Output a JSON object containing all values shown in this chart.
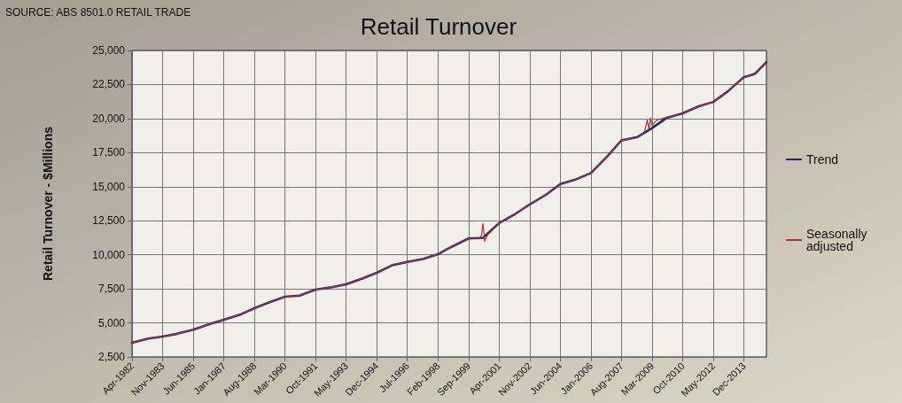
{
  "chart_data": {
    "type": "line",
    "title": "Retail Turnover",
    "ylabel": "Retail Turnover - $Millions",
    "annotations": [
      "SOURCE: ABS 8501.0 RETAIL TRADE"
    ],
    "xlim": [
      "1982-04",
      "2015-02"
    ],
    "xticks": [
      {
        "value": "1982-04",
        "label": "Apr-1982"
      },
      {
        "value": "1983-11",
        "label": "Nov-1983"
      },
      {
        "value": "1985-06",
        "label": "Jun-1985"
      },
      {
        "value": "1987-01",
        "label": "Jan-1987"
      },
      {
        "value": "1988-08",
        "label": "Aug-1988"
      },
      {
        "value": "1990-03",
        "label": "Mar-1990"
      },
      {
        "value": "1991-10",
        "label": "Oct-1991"
      },
      {
        "value": "1993-05",
        "label": "May-1993"
      },
      {
        "value": "1994-12",
        "label": "Dec-1994"
      },
      {
        "value": "1996-07",
        "label": "Jul-1996"
      },
      {
        "value": "1998-02",
        "label": "Feb-1998"
      },
      {
        "value": "1999-09",
        "label": "Sep-1999"
      },
      {
        "value": "2001-04",
        "label": "Apr-2001"
      },
      {
        "value": "2002-11",
        "label": "Nov-2002"
      },
      {
        "value": "2004-06",
        "label": "Jun-2004"
      },
      {
        "value": "2006-01",
        "label": "Jan-2006"
      },
      {
        "value": "2007-08",
        "label": "Aug-2007"
      },
      {
        "value": "2009-03",
        "label": "Mar-2009"
      },
      {
        "value": "2010-10",
        "label": "Oct-2010"
      },
      {
        "value": "2012-05",
        "label": "May-2012"
      },
      {
        "value": "2013-12",
        "label": "Dec-2013"
      }
    ],
    "ylim": [
      2500,
      25000
    ],
    "yticks": [
      {
        "value": 2500,
        "label": "2,500"
      },
      {
        "value": 5000,
        "label": "5,000"
      },
      {
        "value": 7500,
        "label": "7,500"
      },
      {
        "value": 10000,
        "label": "10,000"
      },
      {
        "value": 12500,
        "label": "12,500"
      },
      {
        "value": 15000,
        "label": "15,000"
      },
      {
        "value": 17500,
        "label": "17,500"
      },
      {
        "value": 20000,
        "label": "20,000"
      },
      {
        "value": 22500,
        "label": "22,500"
      },
      {
        "value": 25000,
        "label": "25,000"
      }
    ],
    "grid": true,
    "legend": "right",
    "marker": "none",
    "line_style": "solid",
    "series": [
      {
        "name": "Trend",
        "color": "#1f2a6e",
        "x": [
          "1982-04",
          "1983-02",
          "1983-11",
          "1984-08",
          "1985-06",
          "1986-04",
          "1987-01",
          "1987-11",
          "1988-08",
          "1989-05",
          "1990-03",
          "1990-12",
          "1991-10",
          "1992-08",
          "1993-05",
          "1994-03",
          "1994-12",
          "1995-10",
          "1996-07",
          "1997-05",
          "1998-02",
          "1998-09",
          "1999-09",
          "2000-06",
          "2001-04",
          "2002-02",
          "2002-11",
          "2003-09",
          "2004-06",
          "2005-03",
          "2006-01",
          "2006-11",
          "2007-08",
          "2008-06",
          "2009-03",
          "2009-12",
          "2010-10",
          "2011-08",
          "2012-05",
          "2013-02",
          "2013-12",
          "2014-07",
          "2015-02"
        ],
        "values": [
          3540,
          3850,
          4000,
          4200,
          4500,
          4900,
          5230,
          5600,
          6080,
          6500,
          6920,
          7000,
          7440,
          7620,
          7830,
          8250,
          8680,
          9250,
          9480,
          9700,
          10040,
          10500,
          11200,
          11250,
          12320,
          13000,
          13700,
          14400,
          15200,
          15500,
          16000,
          17200,
          18400,
          18650,
          19300,
          20050,
          20380,
          20900,
          21220,
          22000,
          23040,
          23300,
          24150
        ]
      },
      {
        "name": "Seasonally adjusted",
        "color": "#b0303a",
        "x": [
          "1982-04",
          "1983-02",
          "1983-11",
          "1984-08",
          "1985-06",
          "1986-04",
          "1987-01",
          "1987-11",
          "1988-08",
          "1989-05",
          "1990-03",
          "1990-12",
          "1991-10",
          "1992-08",
          "1993-05",
          "1994-03",
          "1994-12",
          "1995-10",
          "1996-07",
          "1997-05",
          "1998-02",
          "1998-09",
          "1999-09",
          "2000-04",
          "2000-05",
          "2000-06",
          "2000-07",
          "2000-09",
          "2001-04",
          "2002-02",
          "2002-11",
          "2003-09",
          "2004-06",
          "2005-03",
          "2006-01",
          "2006-11",
          "2007-08",
          "2008-06",
          "2008-10",
          "2008-12",
          "2009-01",
          "2009-02",
          "2009-03",
          "2009-06",
          "2009-12",
          "2010-10",
          "2011-08",
          "2012-05",
          "2013-02",
          "2013-12",
          "2014-07",
          "2015-02"
        ],
        "values": [
          3520,
          3870,
          3980,
          4220,
          4480,
          4930,
          5210,
          5620,
          6050,
          6530,
          6900,
          7020,
          7420,
          7650,
          7800,
          8270,
          8650,
          9280,
          9460,
          9730,
          10020,
          10520,
          11180,
          11250,
          11400,
          12300,
          11000,
          11500,
          12300,
          13020,
          13680,
          14420,
          15180,
          15520,
          15980,
          17230,
          18380,
          18620,
          18900,
          19900,
          19200,
          20050,
          19500,
          19900,
          20080,
          20350,
          20930,
          21200,
          22030,
          23000,
          23330,
          24150
        ]
      }
    ]
  }
}
